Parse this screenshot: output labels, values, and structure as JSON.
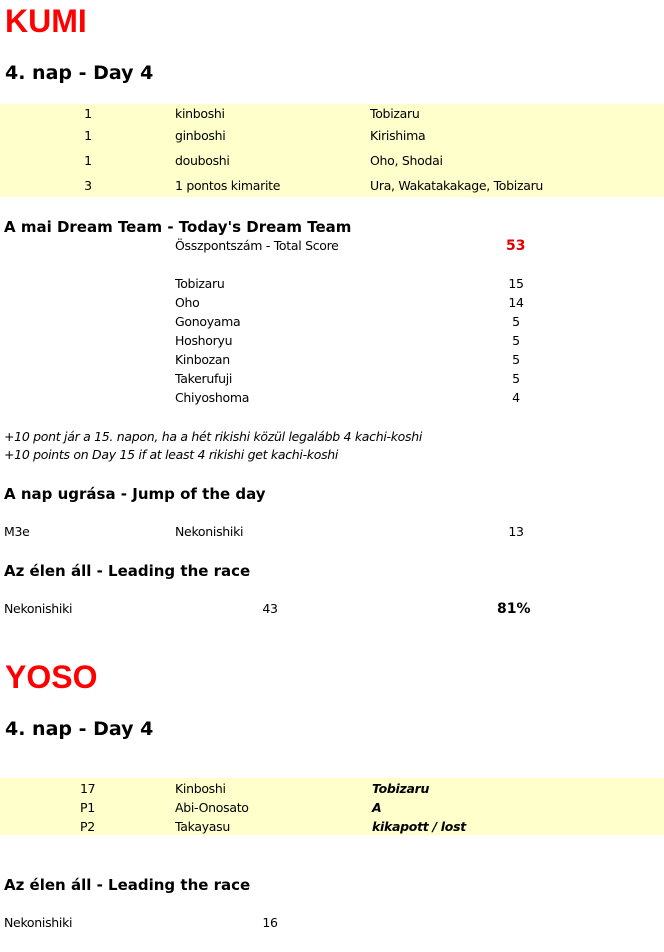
{
  "kumi": {
    "title": "KUMI",
    "day": "4. nap - Day 4",
    "bonus_rows": [
      {
        "count": "1",
        "type": "kinboshi",
        "names": "Tobizaru"
      },
      {
        "count": "1",
        "type": "ginboshi",
        "names": "Kirishima"
      },
      {
        "count": "1",
        "type": "douboshi",
        "names": "Oho, Shodai"
      },
      {
        "count": "3",
        "type": "1 pontos kimarite",
        "names": "Ura, Wakatakakage, Tobizaru"
      }
    ],
    "dream_team": {
      "heading": "A mai Dream Team - Today's Dream Team",
      "total_label": "Összpontszám - Total Score",
      "total_value": "53",
      "members": [
        {
          "name": "Tobizaru",
          "points": "15"
        },
        {
          "name": "Oho",
          "points": "14"
        },
        {
          "name": "Gonoyama",
          "points": "5"
        },
        {
          "name": "Hoshoryu",
          "points": "5"
        },
        {
          "name": "Kinbozan",
          "points": "5"
        },
        {
          "name": "Takerufuji",
          "points": "5"
        },
        {
          "name": "Chiyoshoma",
          "points": "4"
        }
      ]
    },
    "notes": [
      "+10 pont jár a 15. napon, ha a hét rikishi közül legalább 4 kachi-koshi",
      "+10 points on Day 15 if at least 4 rikishi get kachi-koshi"
    ],
    "jump": {
      "heading": "A nap ugrása - Jump of the day",
      "rank": "M3e",
      "name": "Nekonishiki",
      "value": "13"
    },
    "leader": {
      "heading": "Az élen áll - Leading the race",
      "name": "Nekonishiki",
      "points": "43",
      "percent": "81%"
    }
  },
  "yoso": {
    "title": "YOSO",
    "day": "4. nap - Day 4",
    "rows": [
      {
        "col1": "17",
        "col2": "Kinboshi",
        "col3": "Tobizaru"
      },
      {
        "col1": "P1",
        "col2": "Abi-Onosato",
        "col3": "A"
      },
      {
        "col1": "P2",
        "col2": "Takayasu",
        "col3": "kikapott / lost"
      }
    ],
    "leader": {
      "heading": "Az élen áll - Leading the race",
      "name": "Nekonishiki",
      "points": "16"
    }
  },
  "colors": {
    "title": "#ff0000",
    "highlight_band": "#ffffcc",
    "score": "#e00000"
  }
}
